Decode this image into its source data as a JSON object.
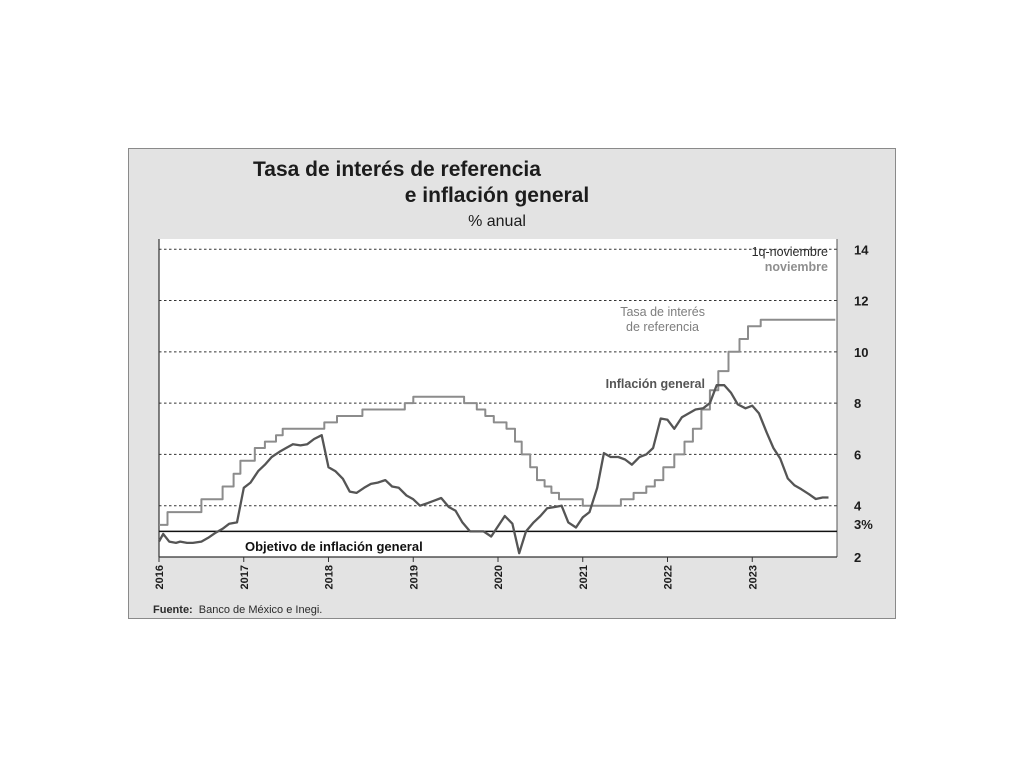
{
  "chart_data": {
    "type": "line",
    "title_line1": "Tasa de interés de referencia",
    "title_line2": "e inflación general",
    "subtitle": "% anual",
    "legend_top_line1": "1q-noviembre",
    "legend_top_line2": "noviembre",
    "target_value": 3,
    "target_value_label": "3%",
    "target_label": "Objetivo de inflación general",
    "source_bold": "Fuente:",
    "source_text": "Banco de México e Inegi.",
    "ylim": [
      2,
      14.4
    ],
    "yticks": [
      2,
      4,
      6,
      8,
      10,
      12,
      14
    ],
    "ytick_labels": [
      "2",
      "4",
      "6",
      "8",
      "10",
      "12",
      "14"
    ],
    "xlim": [
      2016.0,
      2024.0
    ],
    "xticks": [
      2016,
      2017,
      2018,
      2019,
      2020,
      2021,
      2022,
      2023
    ],
    "xtick_labels": [
      "2016",
      "2017",
      "2018",
      "2019",
      "2020",
      "2021",
      "2022",
      "2023"
    ],
    "grid": "dashed horizontal lines at 4, 6, 8, 10, 12, 14",
    "series": [
      {
        "name": "Tasa de interés de referencia",
        "label_line1": "Tasa de interés",
        "label_line2": "de referencia",
        "color": "#8c8c8c",
        "style": "step",
        "x": [
          2016.0,
          2016.1,
          2016.5,
          2016.75,
          2016.88,
          2016.96,
          2017.13,
          2017.25,
          2017.38,
          2017.46,
          2017.95,
          2018.1,
          2018.4,
          2018.9,
          2019.0,
          2019.6,
          2019.75,
          2019.85,
          2019.95,
          2020.1,
          2020.2,
          2020.28,
          2020.38,
          2020.46,
          2020.55,
          2020.63,
          2020.72,
          2020.8,
          2020.9,
          2021.0,
          2021.45,
          2021.6,
          2021.75,
          2021.85,
          2021.95,
          2022.08,
          2022.2,
          2022.3,
          2022.4,
          2022.5,
          2022.6,
          2022.72,
          2022.85,
          2022.95,
          2023.1,
          2023.24,
          2023.3,
          2023.5,
          2023.9
        ],
        "values": [
          3.25,
          3.75,
          4.25,
          4.75,
          5.25,
          5.75,
          6.25,
          6.5,
          6.75,
          7.0,
          7.25,
          7.5,
          7.75,
          8.0,
          8.25,
          8.0,
          7.75,
          7.5,
          7.25,
          7.0,
          6.5,
          6.0,
          5.5,
          5.0,
          4.75,
          4.5,
          4.25,
          4.25,
          4.25,
          4.0,
          4.25,
          4.5,
          4.75,
          5.0,
          5.5,
          6.0,
          6.5,
          7.0,
          7.75,
          8.5,
          9.25,
          10.0,
          10.5,
          11.0,
          11.25,
          11.25,
          11.25,
          11.25,
          11.25
        ]
      },
      {
        "name": "Inflación general",
        "color": "#555555",
        "style": "line",
        "x": [
          2016.0,
          2016.05,
          2016.12,
          2016.2,
          2016.25,
          2016.33,
          2016.4,
          2016.5,
          2016.58,
          2016.67,
          2016.75,
          2016.83,
          2016.92,
          2017.0,
          2017.08,
          2017.17,
          2017.25,
          2017.33,
          2017.42,
          2017.5,
          2017.58,
          2017.67,
          2017.75,
          2017.83,
          2017.92,
          2018.0,
          2018.08,
          2018.17,
          2018.25,
          2018.33,
          2018.42,
          2018.5,
          2018.58,
          2018.67,
          2018.75,
          2018.83,
          2018.92,
          2019.0,
          2019.08,
          2019.17,
          2019.25,
          2019.33,
          2019.42,
          2019.5,
          2019.58,
          2019.67,
          2019.75,
          2019.83,
          2019.92,
          2020.0,
          2020.08,
          2020.17,
          2020.25,
          2020.33,
          2020.42,
          2020.5,
          2020.58,
          2020.67,
          2020.75,
          2020.83,
          2020.92,
          2021.0,
          2021.08,
          2021.17,
          2021.25,
          2021.33,
          2021.42,
          2021.5,
          2021.58,
          2021.67,
          2021.75,
          2021.83,
          2021.92,
          2022.0,
          2022.08,
          2022.17,
          2022.25,
          2022.33,
          2022.42,
          2022.5,
          2022.58,
          2022.67,
          2022.75,
          2022.83,
          2022.92,
          2023.0,
          2023.08,
          2023.17,
          2023.25,
          2023.33,
          2023.42,
          2023.5,
          2023.58,
          2023.67,
          2023.75,
          2023.83,
          2023.9
        ],
        "values": [
          2.6,
          2.9,
          2.6,
          2.55,
          2.6,
          2.55,
          2.55,
          2.6,
          2.75,
          2.95,
          3.1,
          3.3,
          3.35,
          4.7,
          4.9,
          5.35,
          5.6,
          5.9,
          6.1,
          6.25,
          6.4,
          6.35,
          6.4,
          6.6,
          6.75,
          5.5,
          5.35,
          5.05,
          4.55,
          4.5,
          4.7,
          4.85,
          4.9,
          5.0,
          4.75,
          4.7,
          4.4,
          4.25,
          4.0,
          4.1,
          4.2,
          4.3,
          3.95,
          3.8,
          3.35,
          3.0,
          3.0,
          3.0,
          2.8,
          3.2,
          3.6,
          3.3,
          2.15,
          3.0,
          3.35,
          3.6,
          3.9,
          3.95,
          4.0,
          3.35,
          3.15,
          3.55,
          3.75,
          4.7,
          6.05,
          5.9,
          5.9,
          5.8,
          5.6,
          5.9,
          6.0,
          6.25,
          7.4,
          7.35,
          7.0,
          7.45,
          7.6,
          7.75,
          7.8,
          8.0,
          8.7,
          8.7,
          8.4,
          7.95,
          7.8,
          7.9,
          7.6,
          6.85,
          6.25,
          5.84,
          5.06,
          4.79,
          4.64,
          4.45,
          4.26,
          4.32,
          4.32
        ]
      }
    ]
  }
}
